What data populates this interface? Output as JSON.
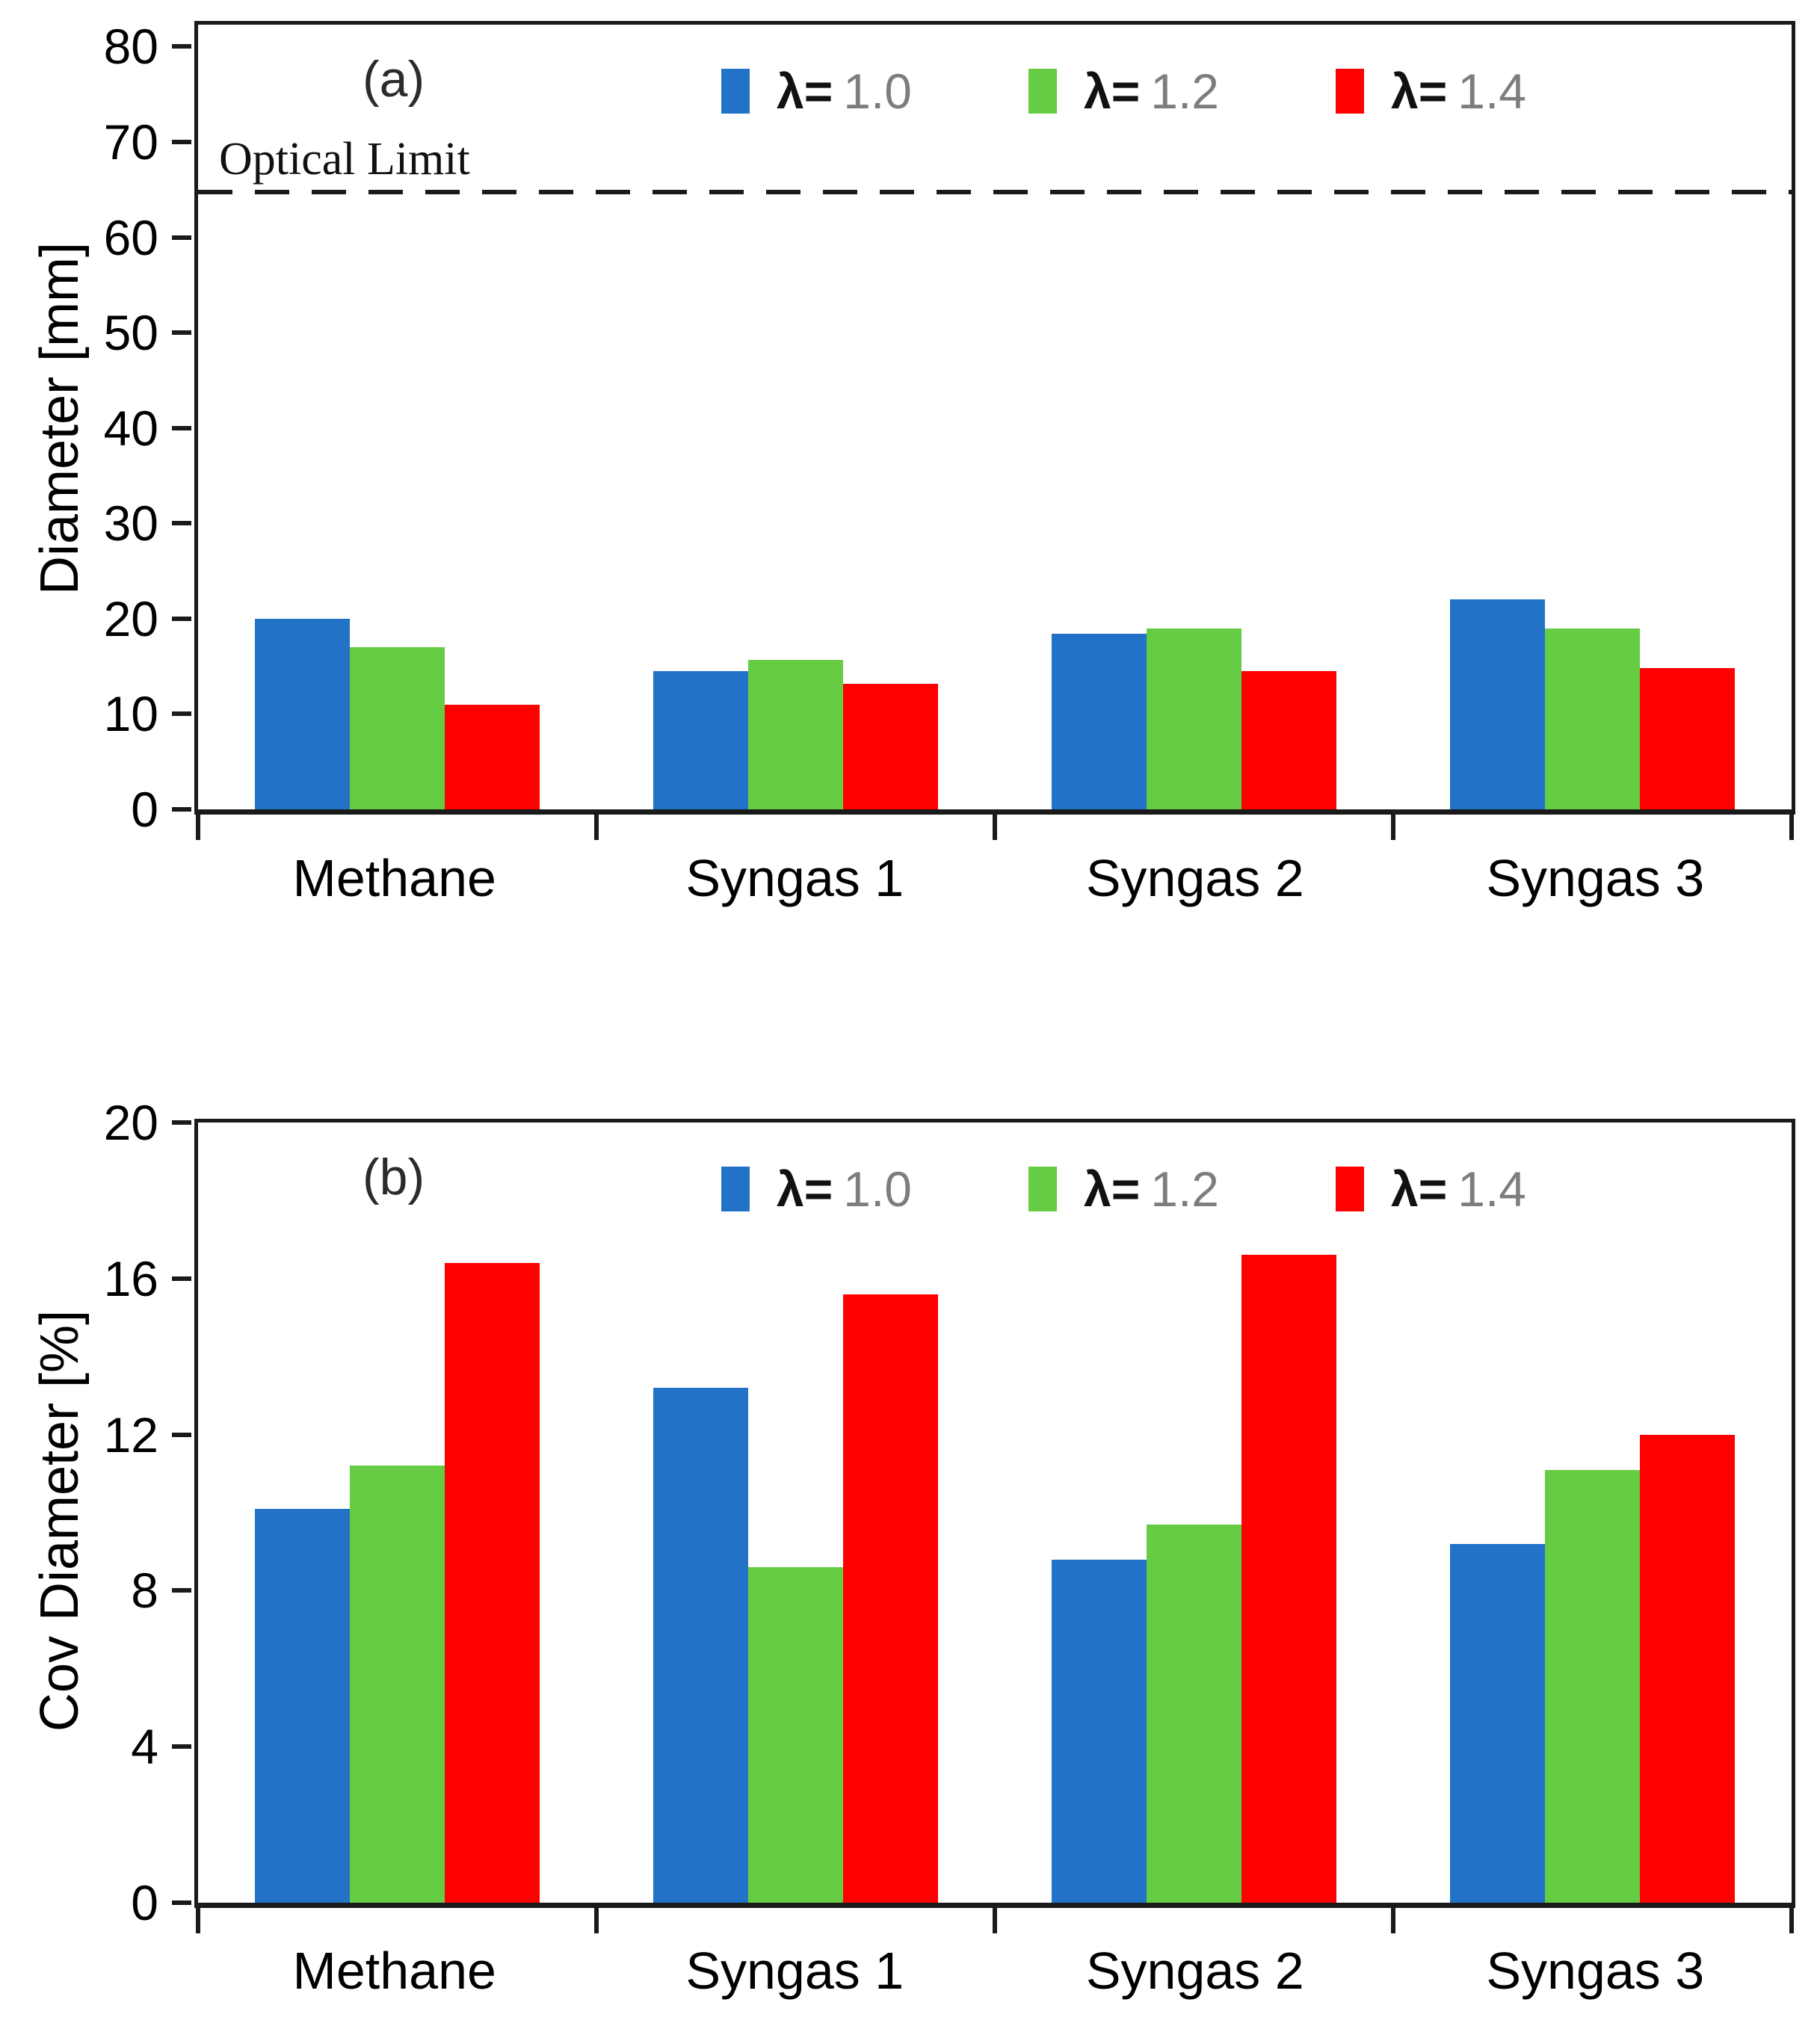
{
  "page": {
    "background": "#ffffff"
  },
  "colors": {
    "axis": "#1a1a1a",
    "tick_text": "#000000",
    "legend_value_text": "#7d7d7d",
    "lambda_text": "#111111",
    "series_blue": "#2272C8",
    "series_green": "#66CC44",
    "series_red": "#FF0000"
  },
  "chart_data": [
    {
      "type": "bar",
      "panel_label": "(a)",
      "title": "",
      "xlabel": "",
      "ylabel": "Diameter [mm]",
      "ylim": [
        0,
        80
      ],
      "draw_max": 82.3,
      "yticks": [
        0,
        10,
        20,
        30,
        40,
        50,
        60,
        70,
        80
      ],
      "grid": false,
      "legend_position": "top-inside",
      "categories": [
        "Methane",
        "Syngas 1",
        "Syngas 2",
        "Syngas 3"
      ],
      "series": [
        {
          "name": "λ= 1.0",
          "symbol": "λ=",
          "value_label": "1.0",
          "color": "#2272C8",
          "values": [
            20.0,
            14.5,
            18.4,
            22.0
          ]
        },
        {
          "name": "λ= 1.2",
          "symbol": "λ=",
          "value_label": "1.2",
          "color": "#66CC44",
          "values": [
            17.0,
            15.7,
            19.0,
            19.0
          ]
        },
        {
          "name": "λ= 1.4",
          "symbol": "λ=",
          "value_label": "1.4",
          "color": "#FF0000",
          "values": [
            11.0,
            13.2,
            14.5,
            14.8
          ]
        }
      ],
      "annotation": {
        "label": "Optical Limit",
        "y": 64.5,
        "style": "dashed"
      }
    },
    {
      "type": "bar",
      "panel_label": "(b)",
      "title": "",
      "xlabel": "",
      "ylabel": "Cov Diameter [%]",
      "ylim": [
        0,
        20
      ],
      "draw_max": 20,
      "yticks": [
        0,
        4,
        8,
        12,
        16,
        20
      ],
      "grid": false,
      "legend_position": "top-inside",
      "categories": [
        "Methane",
        "Syngas 1",
        "Syngas 2",
        "Syngas 3"
      ],
      "series": [
        {
          "name": "λ= 1.0",
          "symbol": "λ=",
          "value_label": "1.0",
          "color": "#2272C8",
          "values": [
            10.1,
            13.2,
            8.8,
            9.2
          ]
        },
        {
          "name": "λ= 1.2",
          "symbol": "λ=",
          "value_label": "1.2",
          "color": "#66CC44",
          "values": [
            11.2,
            8.6,
            9.7,
            11.1
          ]
        },
        {
          "name": "λ= 1.4",
          "symbol": "λ=",
          "value_label": "1.4",
          "color": "#FF0000",
          "values": [
            16.4,
            15.6,
            16.6,
            12.0
          ]
        }
      ],
      "annotation": null
    }
  ]
}
